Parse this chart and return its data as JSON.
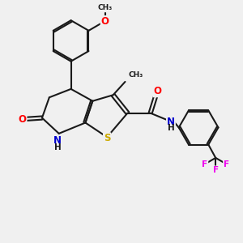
{
  "bg_color": "#f0f0f0",
  "bond_color": "#1a1a1a",
  "bond_width": 1.5,
  "atom_colors": {
    "O": "#ff0000",
    "N": "#0000cc",
    "S": "#ccaa00",
    "F": "#ee00ee",
    "C": "#1a1a1a",
    "H": "#1a1a1a"
  },
  "font_size": 7.5,
  "fig_width": 3.0,
  "fig_height": 3.0,
  "dpi": 100
}
